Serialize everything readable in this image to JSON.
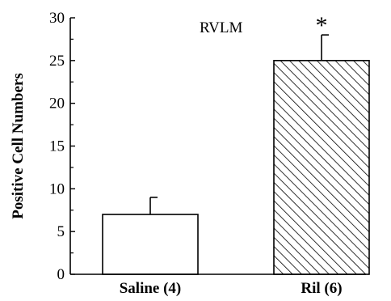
{
  "chart_data": {
    "type": "bar",
    "categories": [
      "Saline (4)",
      "Ril (6)"
    ],
    "values": [
      7,
      25
    ],
    "errors": [
      2,
      3
    ],
    "bar_fills": [
      "plain",
      "hatched"
    ],
    "significance": [
      "",
      "*"
    ],
    "annotation": "RVLM",
    "ylabel": "Positive Cell Numbers",
    "xlabel": "",
    "ylim": [
      0,
      30
    ],
    "yticks": [
      0,
      5,
      10,
      15,
      20,
      25,
      30
    ]
  }
}
